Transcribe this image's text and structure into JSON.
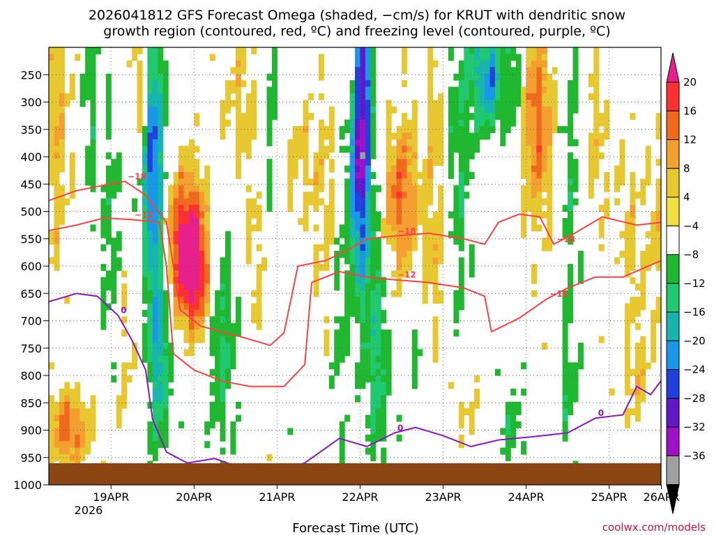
{
  "title_line1": "2026041812 GFS Forecast Omega (shaded, −cm/s) for KRUT with dendritic snow",
  "title_line2": "growth region (contoured, red, ºC) and freezing level (contoured, purple, ºC)",
  "credit": "coolwx.com/models",
  "chart_data": {
    "type": "heatmap",
    "title": "2026041812 GFS Forecast Omega (shaded, −cm/s) for KRUT with dendritic snow growth region (contoured, red, ºC) and freezing level (contoured, purple, ºC)",
    "xlabel": "Forecast Time (UTC)",
    "ylabel": "",
    "x_range_hours": [
      0,
      177
    ],
    "x_ticks": [
      {
        "label": "19APR",
        "hour": 18
      },
      {
        "label": "20APR",
        "hour": 42
      },
      {
        "label": "21APR",
        "hour": 66
      },
      {
        "label": "22APR",
        "hour": 90
      },
      {
        "label": "23APR",
        "hour": 114
      },
      {
        "label": "24APR",
        "hour": 138
      },
      {
        "label": "25APR",
        "hour": 162
      },
      {
        "label": "26APR",
        "hour": 186
      }
    ],
    "x_year_label": "2026",
    "y_ticks": [
      250,
      300,
      350,
      400,
      450,
      500,
      550,
      600,
      650,
      700,
      750,
      800,
      850,
      900,
      950,
      1000
    ],
    "y_range_hPa": [
      200,
      1000
    ],
    "grid": true,
    "colorbar": {
      "labels": [
        "20",
        "16",
        "12",
        "8",
        "4",
        "−4",
        "−8",
        "−12",
        "−16",
        "−20",
        "−24",
        "−28",
        "−32",
        "−36"
      ],
      "colors": [
        "#e8208c",
        "#ff3030",
        "#f06a1e",
        "#f4a030",
        "#e8c830",
        "#f0e040",
        "#ffffff",
        "#20b830",
        "#20c870",
        "#18b4b0",
        "#1898e8",
        "#2040e0",
        "#6018c8",
        "#a010c8",
        "#a0a0a0",
        "#000000"
      ]
    },
    "shaded_features": [
      {
        "name": "Strong sinking (positive)",
        "hour": 40,
        "pressure_top": 420,
        "pressure_bottom": 700,
        "max_value": 20
      },
      {
        "name": "Strong rising (negative)",
        "hour": 90,
        "pressure_top": 200,
        "pressure_bottom": 600,
        "min_value": -32
      },
      {
        "name": "Rising band",
        "hour": 30,
        "pressure_top": 200,
        "pressure_bottom": 950,
        "min_value": -24
      },
      {
        "name": "Low-level sinking",
        "hour": 6,
        "pressure_top": 850,
        "pressure_bottom": 960,
        "max_value": 12
      }
    ],
    "contours": [
      {
        "name": "-18°C isotherm",
        "color": "#ff4040",
        "label": "−18",
        "points": [
          [
            0,
            480
          ],
          [
            8,
            462
          ],
          [
            16,
            452
          ],
          [
            22,
            445
          ],
          [
            28,
            470
          ],
          [
            34,
            520
          ],
          [
            38,
            680
          ],
          [
            44,
            710
          ],
          [
            56,
            730
          ],
          [
            64,
            745
          ],
          [
            68,
            722
          ],
          [
            72,
            600
          ],
          [
            80,
            590
          ],
          [
            86,
            572
          ],
          [
            92,
            550
          ],
          [
            100,
            545
          ],
          [
            110,
            540
          ],
          [
            120,
            550
          ],
          [
            126,
            560
          ],
          [
            130,
            520
          ],
          [
            136,
            505
          ],
          [
            142,
            510
          ],
          [
            146,
            560
          ],
          [
            152,
            540
          ],
          [
            160,
            510
          ],
          [
            170,
            525
          ],
          [
            177,
            520
          ]
        ]
      },
      {
        "name": "-12°C isotherm",
        "color": "#ff4040",
        "label": "−12",
        "points": [
          [
            0,
            535
          ],
          [
            8,
            525
          ],
          [
            16,
            512
          ],
          [
            24,
            515
          ],
          [
            32,
            520
          ],
          [
            34,
            600
          ],
          [
            36,
            760
          ],
          [
            42,
            790
          ],
          [
            50,
            810
          ],
          [
            58,
            820
          ],
          [
            68,
            820
          ],
          [
            74,
            780
          ],
          [
            76,
            630
          ],
          [
            84,
            610
          ],
          [
            92,
            620
          ],
          [
            100,
            625
          ],
          [
            110,
            630
          ],
          [
            120,
            640
          ],
          [
            126,
            655
          ],
          [
            128,
            720
          ],
          [
            136,
            695
          ],
          [
            144,
            660
          ],
          [
            150,
            640
          ],
          [
            158,
            620
          ],
          [
            166,
            620
          ],
          [
            177,
            590
          ]
        ]
      },
      {
        "name": "0°C isotherm (freezing level)",
        "color": "#8c14c8",
        "label": "0",
        "points": [
          [
            0,
            665
          ],
          [
            8,
            650
          ],
          [
            14,
            655
          ],
          [
            20,
            690
          ],
          [
            24,
            735
          ],
          [
            28,
            790
          ],
          [
            30,
            880
          ],
          [
            34,
            940
          ],
          [
            40,
            960
          ],
          [
            48,
            952
          ],
          [
            56,
            970
          ],
          [
            66,
            975
          ],
          [
            74,
            960
          ],
          [
            84,
            915
          ],
          [
            92,
            930
          ],
          [
            100,
            905
          ],
          [
            106,
            895
          ],
          [
            114,
            910
          ],
          [
            122,
            930
          ],
          [
            130,
            918
          ],
          [
            140,
            912
          ],
          [
            150,
            905
          ],
          [
            158,
            878
          ],
          [
            166,
            872
          ],
          [
            170,
            820
          ],
          [
            174,
            835
          ],
          [
            177,
            810
          ]
        ]
      }
    ]
  }
}
